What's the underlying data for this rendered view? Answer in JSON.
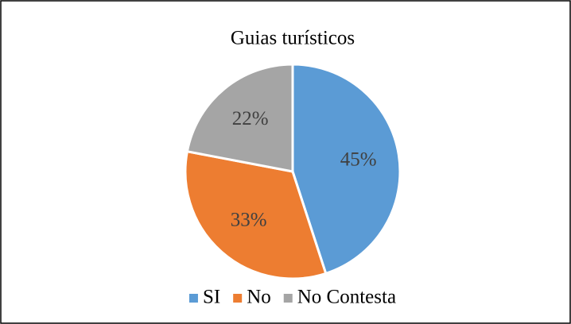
{
  "chart_data": {
    "type": "pie",
    "title": "Guias turísticos",
    "categories": [
      "SI",
      "No",
      "No Contesta"
    ],
    "values": [
      45,
      33,
      22
    ],
    "value_labels": [
      "45%",
      "33%",
      "22%"
    ],
    "colors": [
      "#5b9bd5",
      "#ed7d31",
      "#a5a5a5"
    ],
    "legend": "bottom"
  }
}
